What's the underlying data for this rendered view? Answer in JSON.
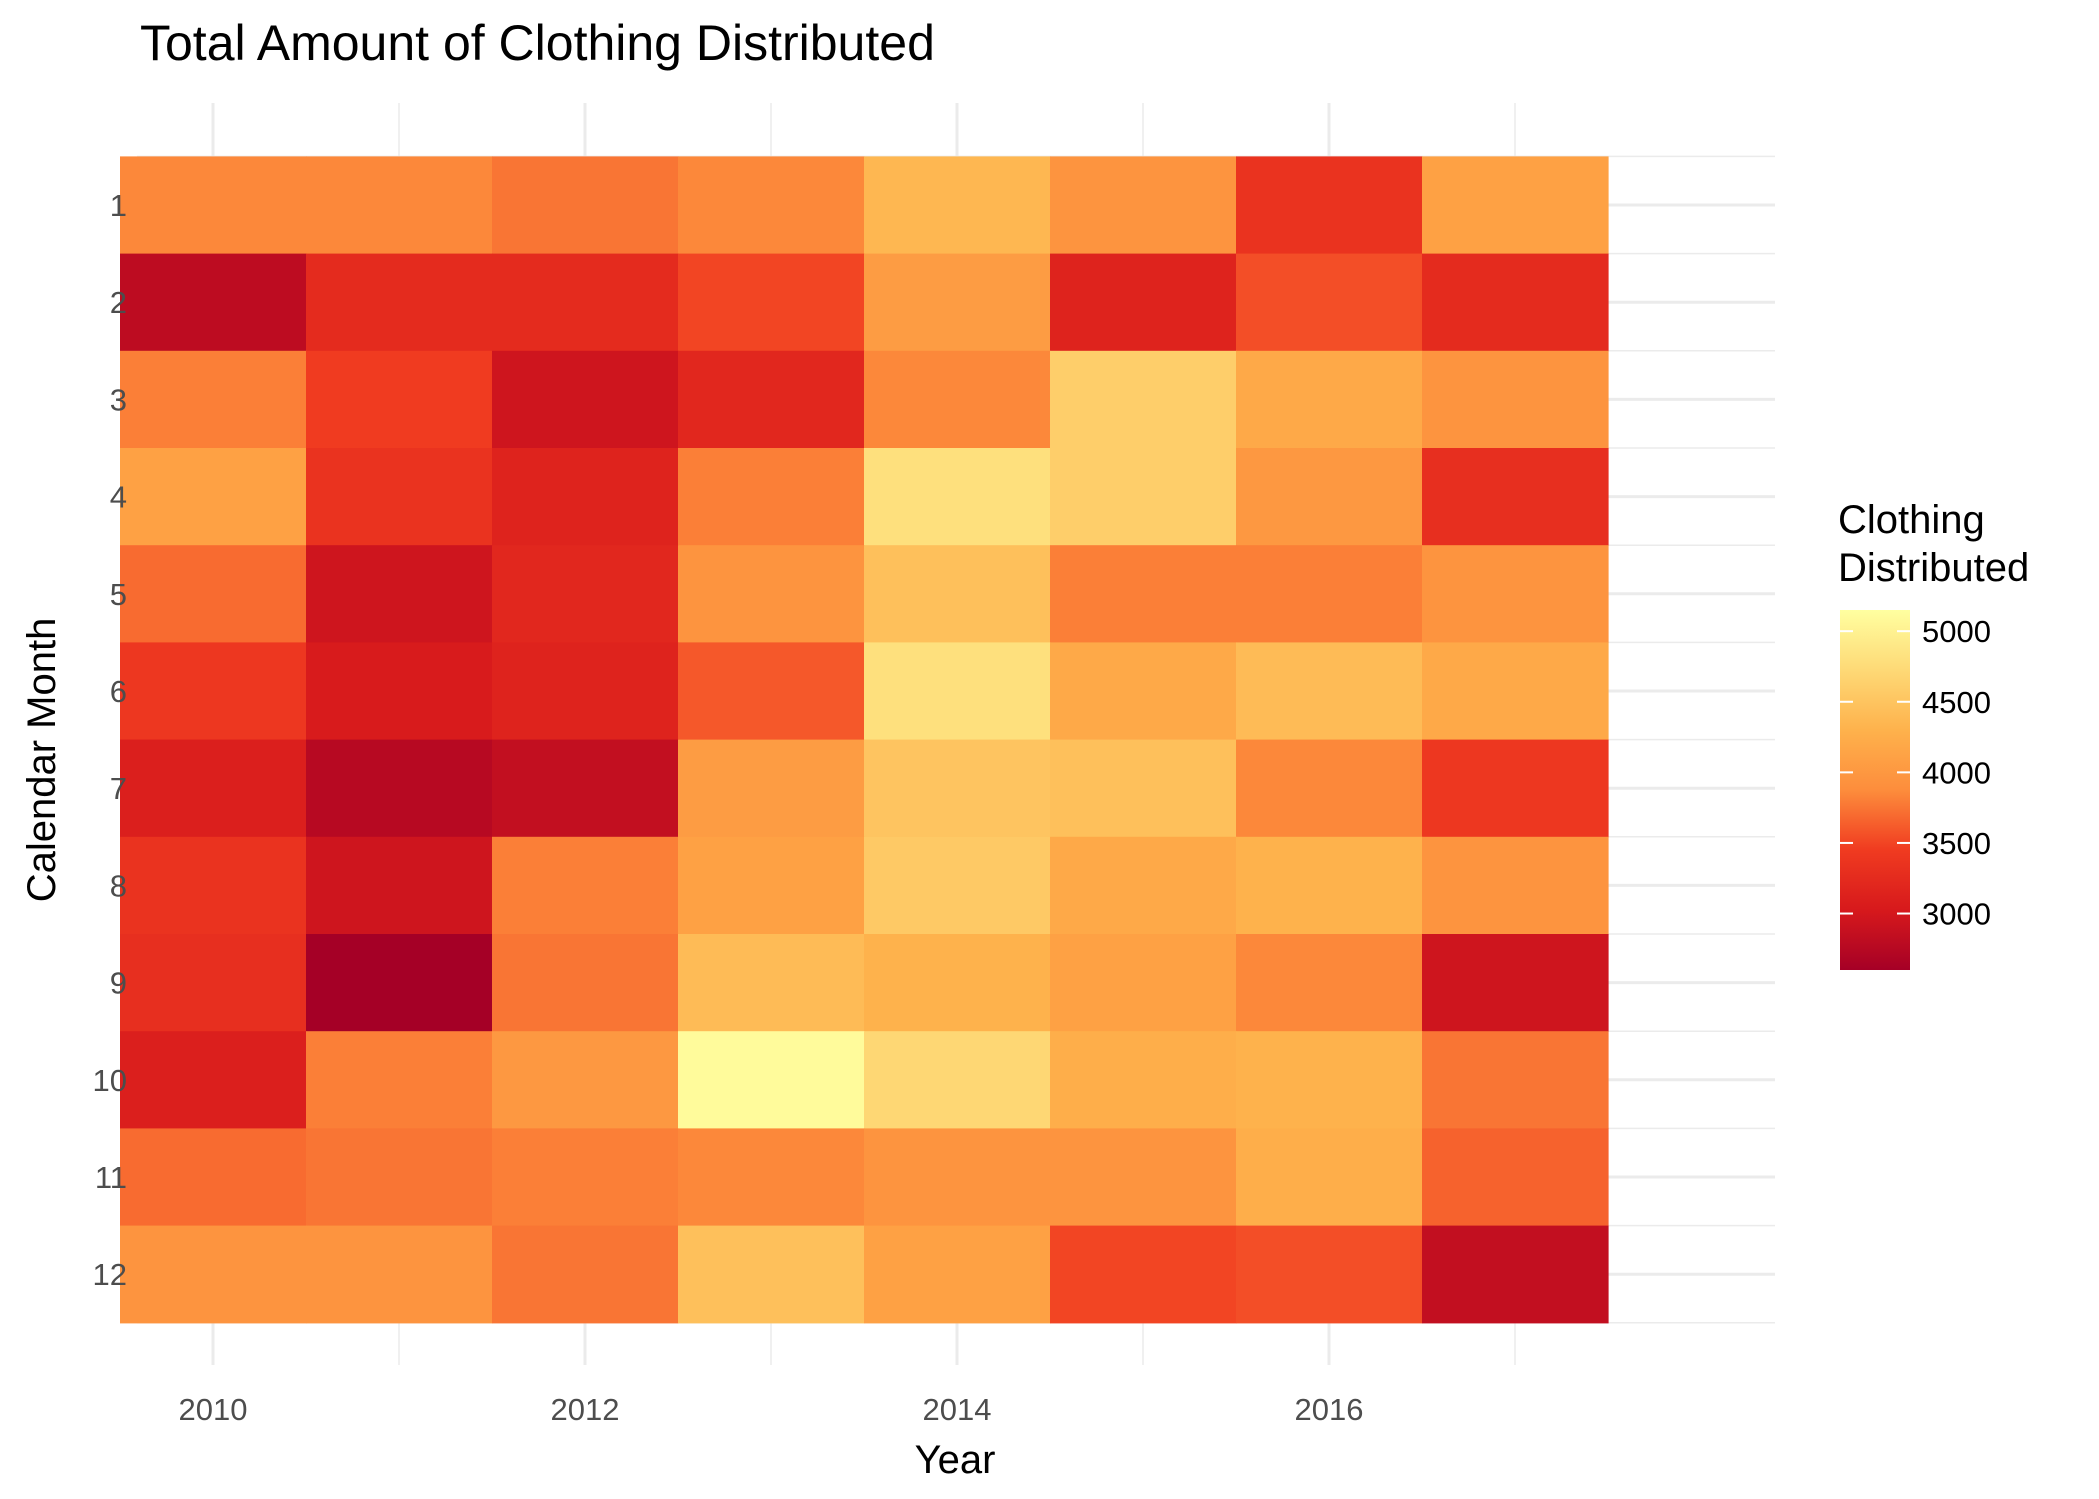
{
  "chart_data": {
    "type": "heatmap",
    "title": "Total Amount of Clothing Distributed",
    "xlabel": "Year",
    "ylabel": "Calendar Month",
    "x": [
      2010,
      2011,
      2012,
      2013,
      2014,
      2015,
      2016,
      2017
    ],
    "y": [
      1,
      2,
      3,
      4,
      5,
      6,
      7,
      8,
      9,
      10,
      11,
      12
    ],
    "x_ticks": [
      "2010",
      "2012",
      "2014",
      "2016"
    ],
    "y_ticks": [
      "1",
      "2",
      "3",
      "4",
      "5",
      "6",
      "7",
      "8",
      "9",
      "10",
      "11",
      "12"
    ],
    "values": [
      [
        3850,
        3850,
        3750,
        3850,
        4350,
        3950,
        3350,
        4100
      ],
      [
        2800,
        3250,
        3250,
        3500,
        4050,
        3150,
        3550,
        3250
      ],
      [
        3800,
        3450,
        2950,
        3200,
        3850,
        4600,
        4200,
        3950
      ],
      [
        4100,
        3350,
        3150,
        3800,
        4800,
        4600,
        4000,
        3300
      ],
      [
        3700,
        2950,
        3200,
        3950,
        4450,
        3800,
        3800,
        3950
      ],
      [
        3400,
        3050,
        3150,
        3600,
        4800,
        4200,
        4400,
        4200
      ],
      [
        3100,
        2750,
        2850,
        4050,
        4500,
        4450,
        3850,
        3400
      ],
      [
        3350,
        2950,
        3800,
        4100,
        4550,
        4200,
        4300,
        3950
      ],
      [
        3300,
        2600,
        3750,
        4400,
        4300,
        4100,
        3850,
        2950
      ],
      [
        3100,
        3800,
        4000,
        5100,
        4700,
        4250,
        4300,
        3750
      ],
      [
        3700,
        3750,
        3800,
        3850,
        3950,
        3950,
        4250,
        3650
      ],
      [
        3950,
        3950,
        3750,
        4450,
        4100,
        3500,
        3550,
        2850
      ]
    ],
    "color_scale": {
      "min": 2600,
      "max": 5150,
      "colors": [
        "#a50026",
        "#d7191c",
        "#f03b20",
        "#fd8d3c",
        "#feb24c",
        "#fed976",
        "#ffffa0"
      ]
    },
    "legend": {
      "title_lines": [
        "Clothing",
        "Distributed"
      ],
      "labels": [
        5000,
        4500,
        4000,
        3500,
        3000
      ],
      "position": "right"
    },
    "grid": true
  }
}
